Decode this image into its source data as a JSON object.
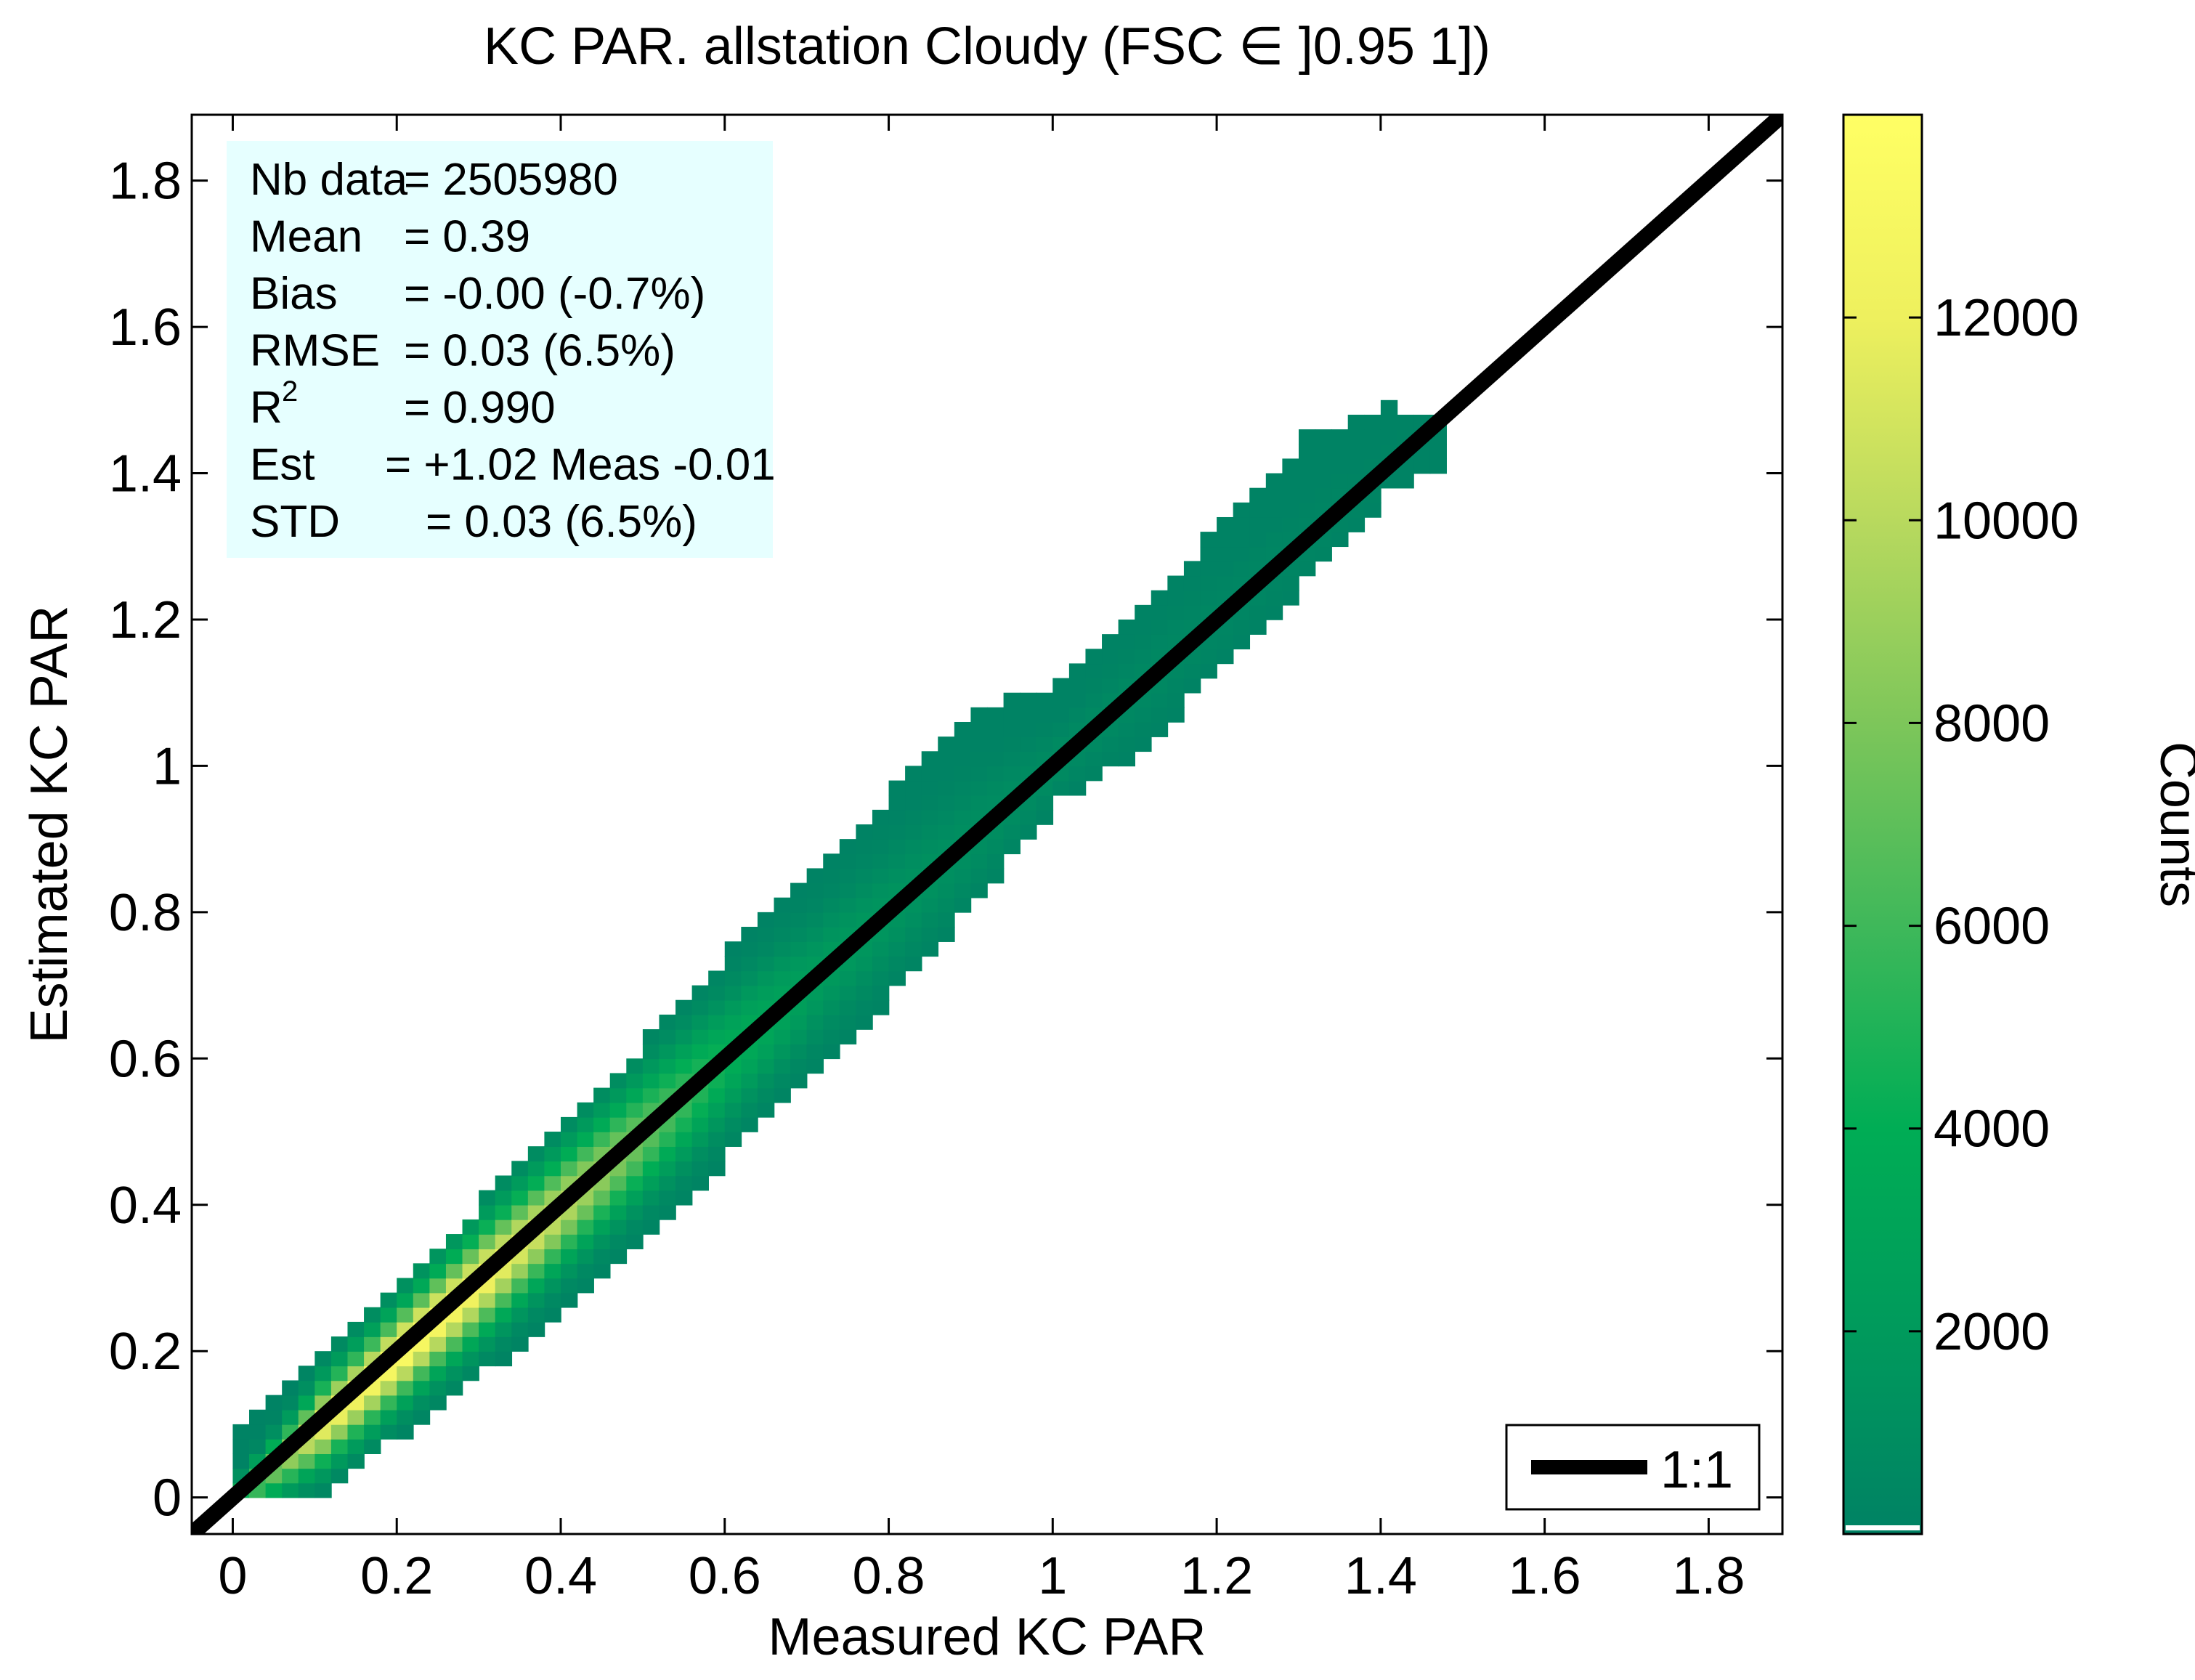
{
  "chart_data": {
    "type": "heatmap",
    "title": "KC PAR. allstation  Cloudy (FSC ∈ ]0.95 1])",
    "xlabel": "Measured KC PAR",
    "ylabel": "Estimated KC PAR",
    "xlim": [
      -0.05,
      1.89
    ],
    "ylim": [
      -0.05,
      1.89
    ],
    "xticks": [
      0,
      0.2,
      0.4,
      0.6,
      0.8,
      1,
      1.2,
      1.4,
      1.6,
      1.8
    ],
    "yticks": [
      0,
      0.2,
      0.4,
      0.6,
      0.8,
      1,
      1.2,
      1.4,
      1.6,
      1.8
    ],
    "xtick_labels": [
      "0",
      "0.2",
      "0.4",
      "0.6",
      "0.8",
      "1",
      "1.2",
      "1.4",
      "1.6",
      "1.8"
    ],
    "ytick_labels": [
      "0",
      "0.2",
      "0.4",
      "0.6",
      "0.8",
      "1",
      "1.2",
      "1.4",
      "1.6",
      "1.8"
    ],
    "bin_width": 0.02,
    "density_profile": [
      {
        "x": 0.0,
        "y_low": -0.01,
        "y_high": 0.08,
        "peak_count": 5000
      },
      {
        "x": 0.1,
        "y_low": 0.0,
        "y_high": 0.18,
        "peak_count": 12000
      },
      {
        "x": 0.2,
        "y_low": 0.09,
        "y_high": 0.29,
        "peak_count": 13800
      },
      {
        "x": 0.3,
        "y_low": 0.17,
        "y_high": 0.4,
        "peak_count": 12500
      },
      {
        "x": 0.4,
        "y_low": 0.26,
        "y_high": 0.5,
        "peak_count": 10000
      },
      {
        "x": 0.5,
        "y_low": 0.36,
        "y_high": 0.62,
        "peak_count": 7000
      },
      {
        "x": 0.6,
        "y_low": 0.47,
        "y_high": 0.74,
        "peak_count": 4000
      },
      {
        "x": 0.7,
        "y_low": 0.58,
        "y_high": 0.85,
        "peak_count": 2200
      },
      {
        "x": 0.8,
        "y_low": 0.69,
        "y_high": 0.96,
        "peak_count": 1500
      },
      {
        "x": 0.9,
        "y_low": 0.82,
        "y_high": 1.07,
        "peak_count": 1000
      },
      {
        "x": 1.0,
        "y_low": 0.95,
        "y_high": 1.1,
        "peak_count": 800
      },
      {
        "x": 1.1,
        "y_low": 1.02,
        "y_high": 1.2,
        "peak_count": 600
      },
      {
        "x": 1.2,
        "y_low": 1.14,
        "y_high": 1.33,
        "peak_count": 400
      },
      {
        "x": 1.3,
        "y_low": 1.25,
        "y_high": 1.44,
        "peak_count": 300
      },
      {
        "x": 1.4,
        "y_low": 1.37,
        "y_high": 1.48,
        "peak_count": 200
      },
      {
        "x": 1.46,
        "y_low": 1.4,
        "y_high": 1.46,
        "peak_count": 150
      }
    ],
    "reference_line": {
      "label": "1:1",
      "slope": 1,
      "intercept": 0
    },
    "legend": {
      "entries": [
        "1:1"
      ],
      "position": "bottom-right"
    },
    "colorbar": {
      "label": "Counts",
      "range": [
        0,
        14000
      ],
      "ticks": [
        2000,
        4000,
        6000,
        8000,
        10000,
        12000
      ],
      "tick_labels": [
        "2000",
        "4000",
        "6000",
        "8000",
        "10000",
        "12000"
      ],
      "colors": [
        "#008264",
        "#009a5c",
        "#00ad55",
        "#3fb85a",
        "#7dc65a",
        "#b8d95e",
        "#eef05e",
        "#ffff64"
      ]
    },
    "stats_box": {
      "background": "#e6ffff",
      "lines": [
        {
          "label": "Nb data",
          "value": "= 2505980"
        },
        {
          "label": "Mean",
          "value": "=  0.39"
        },
        {
          "label": "Bias",
          "value": "= -0.00 (-0.7%)"
        },
        {
          "label": "RMSE",
          "value": "=  0.03  (6.5%)"
        },
        {
          "label": "R",
          "sup": "2",
          "value": "=  0.990"
        },
        {
          "label": "Est",
          "value": "= +1.02 Meas -0.01"
        },
        {
          "label": "STD",
          "value": "= 0.03 (6.5%)"
        }
      ]
    }
  }
}
